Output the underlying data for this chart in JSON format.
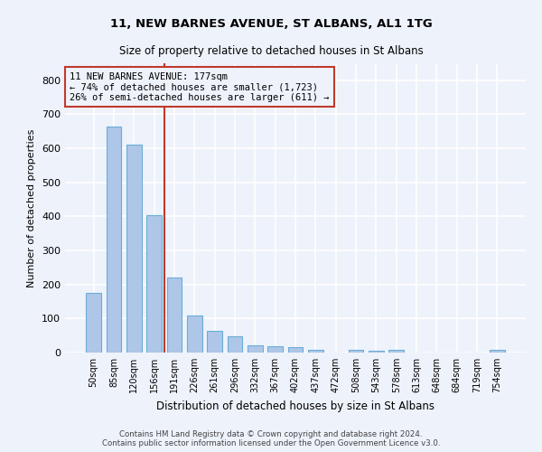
{
  "title": "11, NEW BARNES AVENUE, ST ALBANS, AL1 1TG",
  "subtitle": "Size of property relative to detached houses in St Albans",
  "xlabel": "Distribution of detached houses by size in St Albans",
  "ylabel": "Number of detached properties",
  "bin_labels": [
    "50sqm",
    "85sqm",
    "120sqm",
    "156sqm",
    "191sqm",
    "226sqm",
    "261sqm",
    "296sqm",
    "332sqm",
    "367sqm",
    "402sqm",
    "437sqm",
    "472sqm",
    "508sqm",
    "543sqm",
    "578sqm",
    "613sqm",
    "648sqm",
    "684sqm",
    "719sqm",
    "754sqm"
  ],
  "bar_values": [
    175,
    665,
    610,
    405,
    220,
    110,
    65,
    48,
    20,
    18,
    15,
    8,
    0,
    8,
    5,
    7,
    0,
    0,
    0,
    0,
    8
  ],
  "bar_color": "#aec6e8",
  "bar_edgecolor": "#6aaed6",
  "vline_color": "#c0392b",
  "vline_index": 3.5,
  "annotation_lines": [
    "11 NEW BARNES AVENUE: 177sqm",
    "← 74% of detached houses are smaller (1,723)",
    "26% of semi-detached houses are larger (611) →"
  ],
  "annotation_box_edgecolor": "#c0392b",
  "ylim": [
    0,
    850
  ],
  "yticks": [
    0,
    100,
    200,
    300,
    400,
    500,
    600,
    700,
    800
  ],
  "footer_lines": [
    "Contains HM Land Registry data © Crown copyright and database right 2024.",
    "Contains public sector information licensed under the Open Government Licence v3.0."
  ],
  "bg_color": "#eef2fb",
  "grid_color": "#ffffff"
}
